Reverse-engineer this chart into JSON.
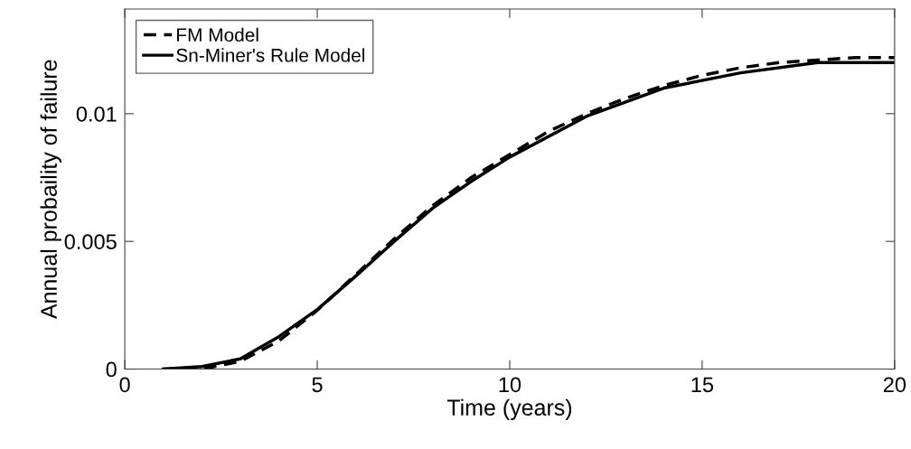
{
  "chart_data": {
    "type": "line",
    "xlabel": "Time (years)",
    "ylabel": "Annual probaility of failure",
    "xlim": [
      0,
      20
    ],
    "xticks": [
      0,
      5,
      10,
      15,
      20
    ],
    "ylim": [
      0,
      0.0141
    ],
    "yticks": [
      0,
      0.005,
      0.01
    ],
    "grid": false,
    "legend": "top left",
    "marker": "none",
    "series": [
      {
        "name": "FM Model",
        "color": "#000000",
        "line_style": "dashed",
        "x": [
          1,
          2,
          3,
          4,
          5,
          6,
          7,
          8,
          9,
          10,
          11,
          12,
          13,
          14,
          15,
          16,
          17,
          18,
          19,
          20
        ],
        "values": [
          0,
          0,
          0.0003,
          0.0011,
          0.0023,
          0.0037,
          0.0051,
          0.0064,
          0.0075,
          0.0084,
          0.0093,
          0.01,
          0.0106,
          0.0111,
          0.0115,
          0.0118,
          0.012,
          0.0121,
          0.0122,
          0.0122
        ]
      },
      {
        "name": "Sn-Miner's Rule Model",
        "color": "#000000",
        "line_style": "solid",
        "x": [
          1,
          2,
          3,
          4,
          5,
          6,
          7,
          8,
          9,
          10,
          12,
          14,
          16,
          18,
          20
        ],
        "values": [
          0,
          0.0001,
          0.0004,
          0.00127,
          0.00233,
          0.00364,
          0.005,
          0.0063,
          0.00735,
          0.0083,
          0.0099,
          0.011,
          0.0116,
          0.012,
          0.012
        ]
      }
    ]
  }
}
